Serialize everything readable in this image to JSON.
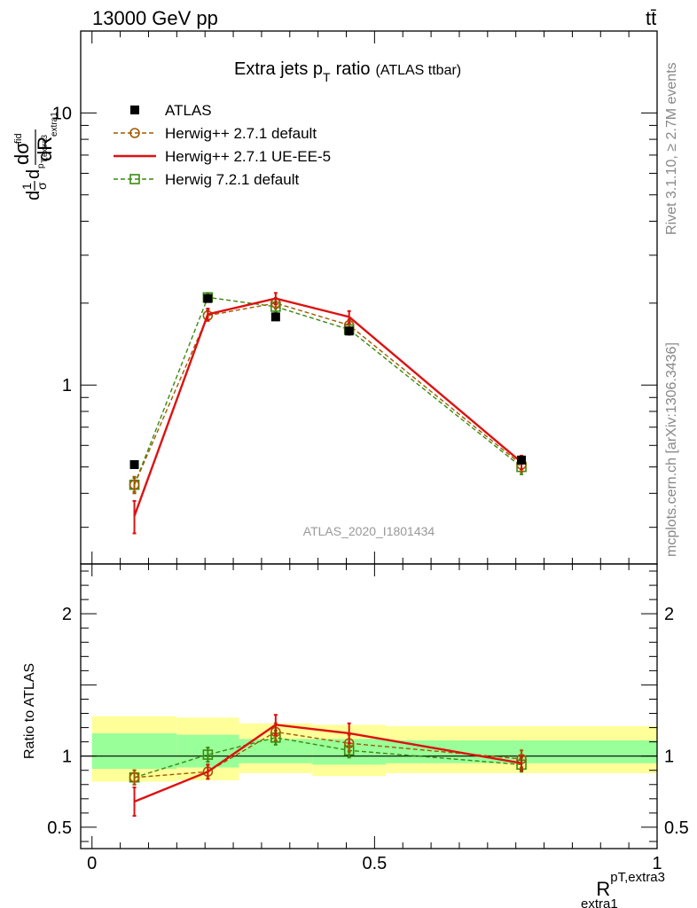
{
  "header": {
    "left": "13000 GeV pp",
    "right": "tt̄"
  },
  "side": {
    "rivet": "Rivet 3.1.10, ≥ 2.7M events",
    "mcplots": "mcplots.cern.ch [arXiv:1306.3436]"
  },
  "chart_data": {
    "type": "line",
    "title": "Extra jets p",
    "title_sub": "T",
    "title_tail": "ratio",
    "title_small": "(ATLAS ttbar)",
    "watermark": "ATLAS_2020_I1801434",
    "xlabel": "R",
    "xlabel_sup": "pT,extra3",
    "xlabel_sub": "extra1",
    "ylabel_main": "dσ/dR (normalized)",
    "xlim": [
      -0.02,
      1.0
    ],
    "main": {
      "yscale": "log",
      "ylim": [
        0.22,
        20
      ],
      "yticks": [
        {
          "v": 1,
          "label": "1"
        },
        {
          "v": 10,
          "label": "10"
        }
      ]
    },
    "ratio": {
      "ylabel": "Ratio to ATLAS",
      "ylim": [
        0.35,
        2.35
      ],
      "yticks": [
        {
          "v": 0.5,
          "label": "0.5"
        },
        {
          "v": 1,
          "label": "1"
        },
        {
          "v": 2,
          "label": "2"
        }
      ]
    },
    "xticks": [
      {
        "v": 0,
        "label": "0"
      },
      {
        "v": 0.5,
        "label": "0.5"
      },
      {
        "v": 1,
        "label": "1"
      }
    ],
    "bins": [
      [
        0,
        0.15
      ],
      [
        0.15,
        0.26
      ],
      [
        0.26,
        0.39
      ],
      [
        0.39,
        0.52
      ],
      [
        0.52,
        1.0
      ]
    ],
    "band_outer": [
      [
        0.82,
        1.28
      ],
      [
        0.83,
        1.27
      ],
      [
        0.88,
        1.23
      ],
      [
        0.86,
        1.22
      ],
      [
        0.88,
        1.21
      ]
    ],
    "band_inner": [
      [
        0.91,
        1.16
      ],
      [
        0.92,
        1.15
      ],
      [
        0.95,
        1.12
      ],
      [
        0.94,
        1.12
      ],
      [
        0.95,
        1.11
      ]
    ],
    "legend": [
      {
        "key": "atlas",
        "label": "ATLAS"
      },
      {
        "key": "h271def",
        "label": "Herwig++ 2.7.1 default"
      },
      {
        "key": "h271ue",
        "label": "Herwig++ 2.7.1 UE-EE-5"
      },
      {
        "key": "h721",
        "label": "Herwig 7.2.1 default"
      }
    ],
    "series": [
      {
        "key": "atlas",
        "name": "ATLAS",
        "color": "#000000",
        "marker": "filled-square",
        "line": "none",
        "x": [
          0.075,
          0.205,
          0.325,
          0.455,
          0.76
        ],
        "y": [
          0.51,
          2.08,
          1.78,
          1.58,
          0.53
        ],
        "yerr": [
          0,
          0,
          0,
          0,
          0
        ],
        "ratio": [
          1,
          1,
          1,
          1,
          1
        ],
        "ratio_err": [
          0,
          0,
          0,
          0,
          0
        ]
      },
      {
        "key": "h271def",
        "name": "Herwig++ 2.7.1 default",
        "color": "#a05a00",
        "marker": "open-circle",
        "line": "dashed",
        "x": [
          0.075,
          0.205,
          0.325,
          0.455,
          0.76
        ],
        "y": [
          0.43,
          1.8,
          2.0,
          1.66,
          0.51
        ],
        "yerr": [
          0.03,
          0.08,
          0.09,
          0.08,
          0.03
        ],
        "ratio": [
          0.85,
          0.89,
          1.17,
          1.09,
          0.98
        ],
        "ratio_err": [
          0.05,
          0.05,
          0.06,
          0.06,
          0.06
        ]
      },
      {
        "key": "h271ue",
        "name": "Herwig++ 2.7.1 UE-EE-5",
        "color": "#dd1111",
        "marker": "none",
        "line": "solid",
        "x": [
          0.075,
          0.205,
          0.325,
          0.455,
          0.76
        ],
        "y": [
          0.33,
          1.82,
          2.08,
          1.78,
          0.52
        ],
        "yerr": [
          0.045,
          0.09,
          0.1,
          0.09,
          0.03
        ],
        "ratio": [
          0.68,
          0.89,
          1.22,
          1.16,
          0.95
        ],
        "ratio_err": [
          0.1,
          0.05,
          0.07,
          0.07,
          0.05
        ]
      },
      {
        "key": "h721",
        "name": "Herwig 7.2.1 default",
        "color": "#3a8a10",
        "marker": "open-square",
        "line": "dashed",
        "x": [
          0.075,
          0.205,
          0.325,
          0.455,
          0.76
        ],
        "y": [
          0.43,
          2.1,
          1.94,
          1.6,
          0.5
        ],
        "yerr": [
          0.025,
          0.08,
          0.08,
          0.07,
          0.03
        ],
        "ratio": [
          0.85,
          1.01,
          1.13,
          1.04,
          0.94
        ],
        "ratio_err": [
          0.05,
          0.05,
          0.05,
          0.05,
          0.05
        ]
      }
    ]
  }
}
